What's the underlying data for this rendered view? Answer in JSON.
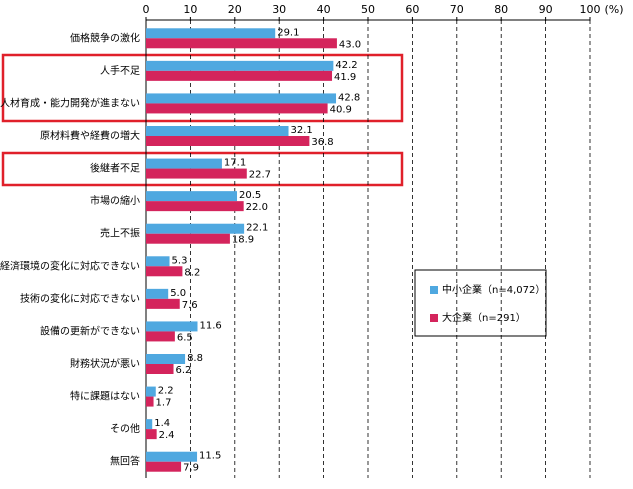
{
  "chart_data": {
    "type": "hbar",
    "xlabel": "(%)",
    "categories": [
      "価格競争の激化",
      "人手不足",
      "人材育成・能力開発が進まない",
      "原材料費や経費の増大",
      "後継者不足",
      "市場の縮小",
      "売上不振",
      "経済環境の変化に対応できない",
      "技術の変化に対応できない",
      "設備の更新ができない",
      "財務状況が悪い",
      "特に課題はない",
      "その他",
      "無回答"
    ],
    "series": [
      {
        "name": "中小企業（n=4,072）",
        "color": "#4fa8e0",
        "values": [
          29.1,
          42.2,
          42.8,
          32.1,
          17.1,
          20.5,
          22.1,
          5.3,
          5.0,
          11.6,
          8.8,
          2.2,
          1.4,
          11.5
        ],
        "value_labels": [
          "29.1",
          "42.2",
          "42.8",
          "32.1",
          "17.1",
          "20.5",
          "22.1",
          "5.3",
          "5.0",
          "11.6",
          "8.8",
          "2.2",
          "1.4",
          "11.5"
        ]
      },
      {
        "name": "大企業（n=291）",
        "color": "#d4245c",
        "values": [
          43.0,
          41.9,
          40.9,
          36.8,
          22.7,
          22.0,
          18.9,
          8.2,
          7.6,
          6.5,
          6.2,
          1.7,
          2.4,
          7.9
        ],
        "value_labels": [
          "43.0",
          "41.9",
          "40.9",
          "36.8",
          "22.7",
          "22.0",
          "18.9",
          "8.2",
          "7.6",
          "6.5",
          "6.2",
          "1.7",
          "2.4",
          "7.9"
        ]
      }
    ],
    "xlim": [
      0,
      100
    ],
    "xticks": [
      0,
      10,
      20,
      30,
      40,
      50,
      60,
      70,
      80,
      90,
      100
    ],
    "grid": true
  }
}
